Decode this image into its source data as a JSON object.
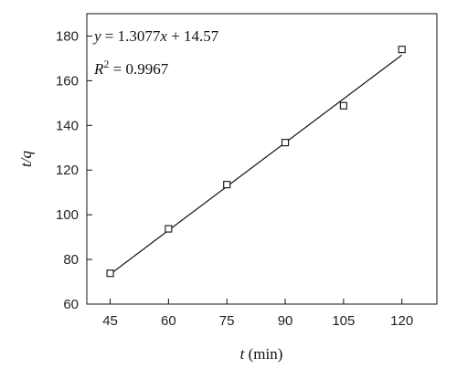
{
  "chart_data": {
    "type": "scatter",
    "x": [
      45,
      60,
      75,
      90,
      105,
      120
    ],
    "y": [
      73.8,
      93.7,
      113.5,
      132.3,
      148.8,
      174.0
    ],
    "fit": {
      "slope": 1.3077,
      "intercept": 14.57,
      "x_range": [
        45,
        120
      ]
    },
    "equation_text": "y = 1.3077x + 14.57",
    "r2_label": "R",
    "r2_sup": "2",
    "r2_value_text": " = 0.9967",
    "xlabel_var": "t",
    "xlabel_unit": " (min)",
    "ylabel": "t/q",
    "xlim": [
      39,
      129
    ],
    "ylim": [
      60,
      190
    ],
    "xticks": [
      45,
      60,
      75,
      90,
      105,
      120
    ],
    "yticks": [
      60,
      80,
      100,
      120,
      140,
      160,
      180
    ],
    "grid": false,
    "marker": "open-square"
  }
}
